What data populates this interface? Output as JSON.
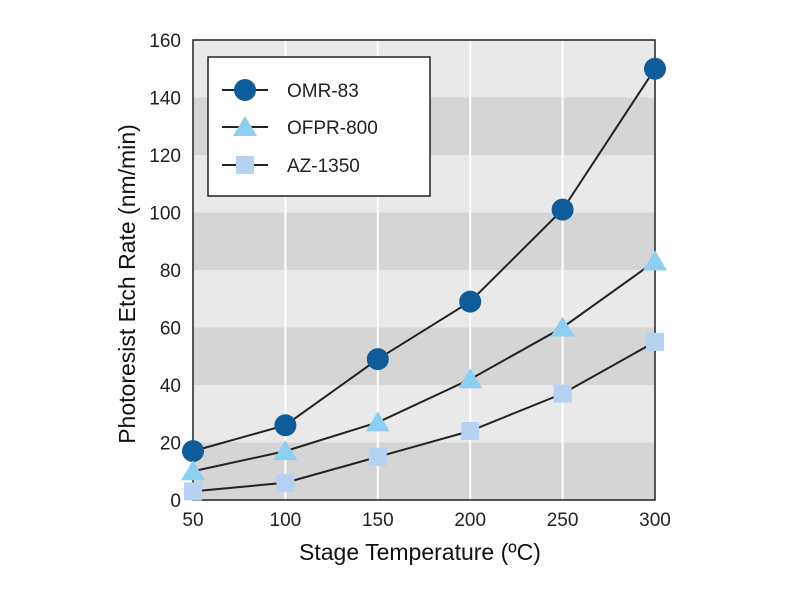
{
  "chart_data": {
    "type": "line",
    "title": "",
    "xlabel": "Stage Temperature (ºC)",
    "ylabel": "Photoresist Etch Rate (nm/min)",
    "x": [
      50,
      100,
      150,
      200,
      250,
      300
    ],
    "xlim": [
      50,
      300
    ],
    "ylim": [
      0,
      160
    ],
    "xticks": [
      "50",
      "100",
      "150",
      "200",
      "250",
      "300"
    ],
    "yticks": [
      "0",
      "20",
      "40",
      "60",
      "80",
      "100",
      "120",
      "140",
      "160"
    ],
    "legend_position": "top-left",
    "background": "alternating gray horizontal bands",
    "series": [
      {
        "name": "OMR-83",
        "marker": "circle",
        "color": "#0e5c9a",
        "values": [
          17,
          26,
          49,
          69,
          101,
          150
        ]
      },
      {
        "name": "OFPR-800",
        "marker": "triangle",
        "color": "#8ccff2",
        "values": [
          10,
          17,
          27,
          42,
          60,
          83
        ]
      },
      {
        "name": "AZ-1350",
        "marker": "square",
        "color": "#b5d2f2",
        "values": [
          3,
          6,
          15,
          24,
          37,
          55
        ]
      }
    ],
    "colors": {
      "line": "#222222",
      "band_light": "#e9e9e9",
      "band_dark": "#d5d5d5",
      "grid": "#ffffff"
    }
  }
}
